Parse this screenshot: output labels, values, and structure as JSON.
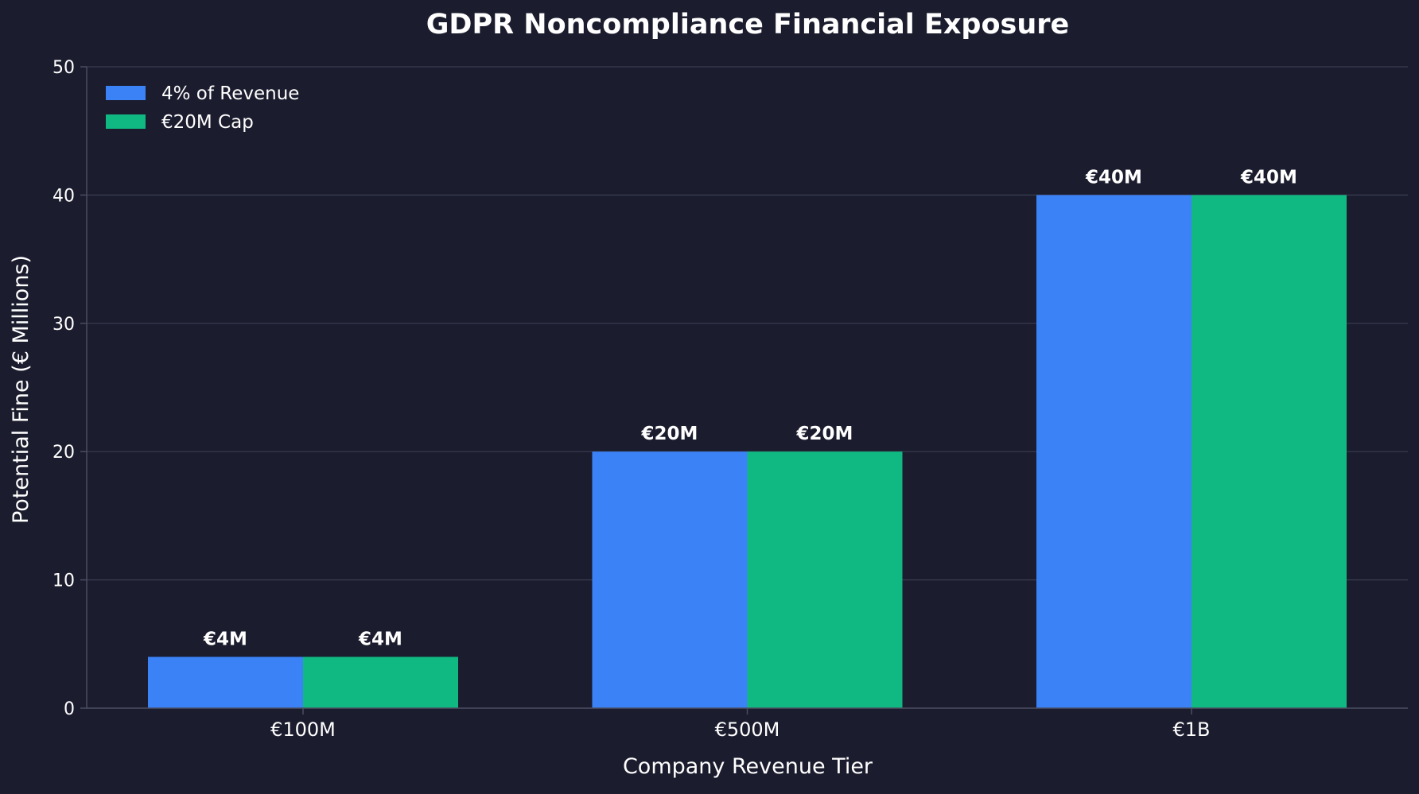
{
  "chart_data": {
    "type": "bar",
    "title": "GDPR Noncompliance Financial Exposure",
    "xlabel": "Company Revenue Tier",
    "ylabel": "Potential Fine (€ Millions)",
    "categories": [
      "€100M",
      "€500M",
      "€1B"
    ],
    "series": [
      {
        "name": "4% of Revenue",
        "values": [
          4,
          20,
          40
        ],
        "labels": [
          "€4M",
          "€20M",
          "€40M"
        ],
        "color": "#3b82f6"
      },
      {
        "name": "€20M Cap",
        "values": [
          4,
          20,
          40
        ],
        "labels": [
          "€4M",
          "€20M",
          "€40M"
        ],
        "color": "#10b981"
      }
    ],
    "ylim": [
      0,
      50
    ],
    "yticks": [
      0,
      10,
      20,
      30,
      40,
      50
    ],
    "grid": true,
    "legend_position": "top-left"
  },
  "colors": {
    "background": "#1b1c2e",
    "text": "#ffffff",
    "grid": "#3a3c50",
    "spine": "#4a4c60"
  }
}
